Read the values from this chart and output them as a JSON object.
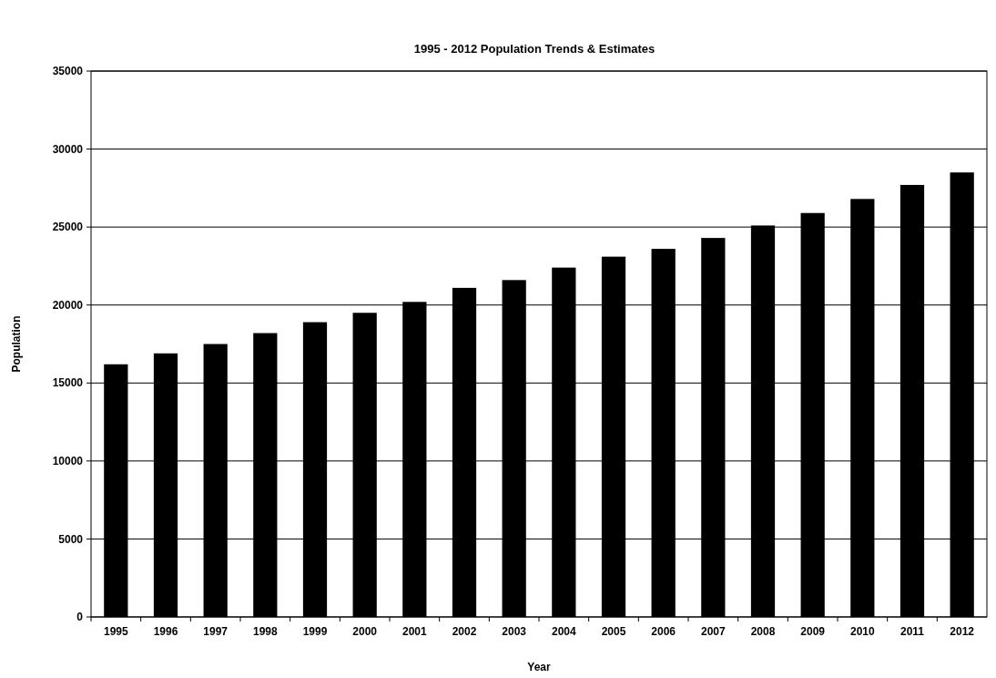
{
  "chart_data": {
    "type": "bar",
    "title": "1995 - 2012 Population Trends & Estimates",
    "xlabel": "Year",
    "ylabel": "Population",
    "categories": [
      "1995",
      "1996",
      "1997",
      "1998",
      "1999",
      "2000",
      "2001",
      "2002",
      "2003",
      "2004",
      "2005",
      "2006",
      "2007",
      "2008",
      "2009",
      "2010",
      "2011",
      "2012"
    ],
    "values": [
      16200,
      16900,
      17500,
      18200,
      18900,
      19500,
      20200,
      21100,
      21600,
      22400,
      23100,
      23600,
      24300,
      25100,
      25900,
      26800,
      27700,
      28500
    ],
    "color": "#000000",
    "ylim": [
      0,
      35000
    ],
    "yticks": [
      0,
      5000,
      10000,
      15000,
      20000,
      25000,
      30000,
      35000
    ],
    "grid": "y"
  }
}
